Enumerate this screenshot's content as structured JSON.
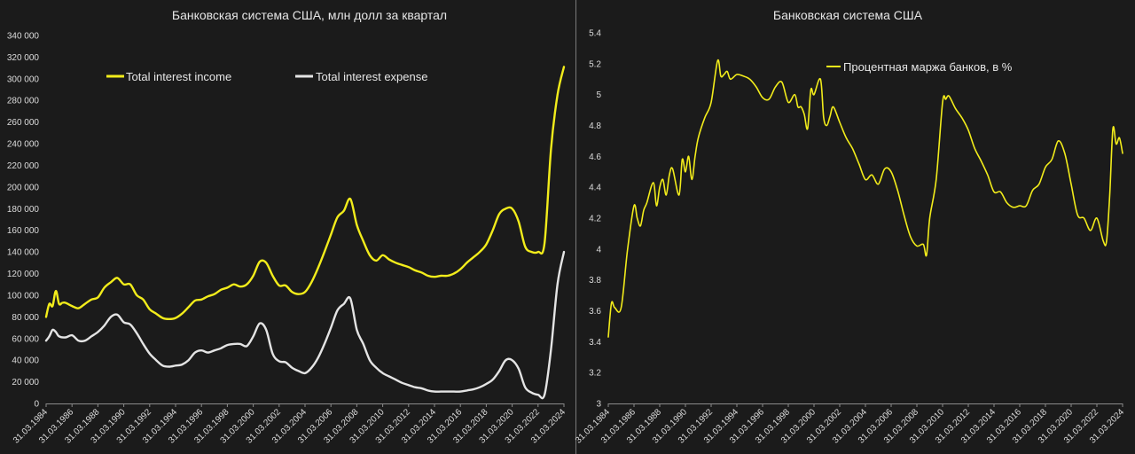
{
  "colors": {
    "background": "#1b1b1b",
    "plot": "#1b1b1b",
    "income": "#f2ec1b",
    "expense": "#e4e4e4",
    "margin": "#f2ec1b",
    "grid": "#3a3a3a",
    "divider": "#888888"
  },
  "chart_data": [
    {
      "type": "line",
      "title": "Банковская система США, млн долл за квартал",
      "xlabel": "",
      "ylabel": "",
      "ylim": [
        0,
        340000
      ],
      "yticks": [
        0,
        20000,
        40000,
        60000,
        80000,
        100000,
        120000,
        140000,
        160000,
        180000,
        200000,
        220000,
        240000,
        260000,
        280000,
        300000,
        320000,
        340000
      ],
      "ytick_labels": [
        "0",
        "20 000",
        "40 000",
        "60 000",
        "80 000",
        "100 000",
        "120 000",
        "140 000",
        "160 000",
        "180 000",
        "200 000",
        "220 000",
        "240 000",
        "260 000",
        "280 000",
        "300 000",
        "320 000",
        "340 000"
      ],
      "xlim": [
        1984,
        2024
      ],
      "xtick_labels": [
        "31.03.1984",
        "31.03.1986",
        "31.03.1988",
        "31.03.1990",
        "31.03.1992",
        "31.03.1994",
        "31.03.1996",
        "31.03.1998",
        "31.03.2000",
        "31.03.2002",
        "31.03.2004",
        "31.03.2006",
        "31.03.2008",
        "31.03.2010",
        "31.03.2012",
        "31.03.2014",
        "31.03.2016",
        "31.03.2018",
        "31.03.2020",
        "31.03.2022",
        "31.03.2024"
      ],
      "grid": false,
      "legend": "top-left",
      "series": [
        {
          "name": "Total interest income",
          "x": [
            1984.0,
            1984.25,
            1984.5,
            1984.75,
            1985.0,
            1985.25,
            1985.5,
            1986.0,
            1986.5,
            1987.0,
            1987.5,
            1988.0,
            1988.5,
            1989.0,
            1989.5,
            1990.0,
            1990.5,
            1991.0,
            1991.5,
            1992.0,
            1992.5,
            1993.0,
            1993.5,
            1994.0,
            1994.5,
            1995.0,
            1995.5,
            1996.0,
            1996.5,
            1997.0,
            1997.5,
            1998.0,
            1998.5,
            1999.0,
            1999.5,
            2000.0,
            2000.5,
            2001.0,
            2001.5,
            2002.0,
            2002.5,
            2003.0,
            2003.5,
            2004.0,
            2004.5,
            2005.0,
            2005.5,
            2006.0,
            2006.5,
            2007.0,
            2007.5,
            2008.0,
            2008.5,
            2009.0,
            2009.5,
            2010.0,
            2010.5,
            2011.0,
            2011.5,
            2012.0,
            2012.5,
            2013.0,
            2013.5,
            2014.0,
            2014.5,
            2015.0,
            2015.5,
            2016.0,
            2016.5,
            2017.0,
            2017.5,
            2018.0,
            2018.5,
            2019.0,
            2019.5,
            2020.0,
            2020.5,
            2021.0,
            2021.5,
            2022.0,
            2022.5,
            2023.0,
            2023.5,
            2024.0
          ],
          "y": [
            80000,
            92000,
            90000,
            104000,
            92000,
            93000,
            93000,
            90000,
            88000,
            92000,
            96000,
            98000,
            107000,
            112000,
            116000,
            110000,
            110000,
            100000,
            96000,
            87000,
            83000,
            79000,
            78000,
            79000,
            83000,
            89000,
            95000,
            96000,
            99000,
            101000,
            105000,
            107000,
            110000,
            108000,
            110000,
            118000,
            131000,
            130000,
            118000,
            109000,
            109000,
            103000,
            101000,
            103000,
            112000,
            125000,
            140000,
            156000,
            172000,
            178000,
            189000,
            165000,
            150000,
            137000,
            132000,
            137000,
            133000,
            130000,
            128000,
            126000,
            123000,
            121000,
            118000,
            117000,
            118000,
            118000,
            120000,
            124000,
            130000,
            135000,
            140000,
            147000,
            160000,
            175000,
            180000,
            180000,
            168000,
            145000,
            140000,
            140000,
            148000,
            235000,
            285000,
            311000
          ]
        },
        {
          "name": "Total interest expense",
          "x": [
            1984.0,
            1984.25,
            1984.5,
            1984.75,
            1985.0,
            1985.5,
            1986.0,
            1986.5,
            1987.0,
            1987.5,
            1988.0,
            1988.5,
            1989.0,
            1989.5,
            1990.0,
            1990.5,
            1991.0,
            1991.5,
            1992.0,
            1992.5,
            1993.0,
            1993.5,
            1994.0,
            1994.5,
            1995.0,
            1995.5,
            1996.0,
            1996.5,
            1997.0,
            1997.5,
            1998.0,
            1998.5,
            1999.0,
            1999.5,
            2000.0,
            2000.5,
            2001.0,
            2001.5,
            2002.0,
            2002.5,
            2003.0,
            2003.5,
            2004.0,
            2004.5,
            2005.0,
            2005.5,
            2006.0,
            2006.5,
            2007.0,
            2007.5,
            2008.0,
            2008.5,
            2009.0,
            2009.5,
            2010.0,
            2010.5,
            2011.0,
            2011.5,
            2012.0,
            2012.5,
            2013.0,
            2013.5,
            2014.0,
            2014.5,
            2015.0,
            2015.5,
            2016.0,
            2016.5,
            2017.0,
            2017.5,
            2018.0,
            2018.5,
            2019.0,
            2019.5,
            2020.0,
            2020.5,
            2021.0,
            2021.5,
            2022.0,
            2022.5,
            2023.0,
            2023.5,
            2024.0
          ],
          "y": [
            58000,
            62000,
            68000,
            66000,
            62000,
            61000,
            63000,
            58000,
            58000,
            62000,
            66000,
            72000,
            80000,
            82000,
            75000,
            73000,
            65000,
            55000,
            46000,
            40000,
            35000,
            34000,
            35000,
            36000,
            40000,
            47000,
            49000,
            47000,
            49000,
            51000,
            54000,
            55000,
            55000,
            53000,
            62000,
            74000,
            68000,
            46000,
            39000,
            38000,
            33000,
            30000,
            28000,
            33000,
            42000,
            55000,
            70000,
            86000,
            92000,
            97000,
            68000,
            55000,
            40000,
            33000,
            28000,
            25000,
            22000,
            19000,
            17000,
            15000,
            14000,
            12000,
            11000,
            11000,
            11000,
            11000,
            11000,
            12000,
            13000,
            15000,
            18000,
            22000,
            30000,
            40000,
            40000,
            32000,
            15000,
            10000,
            8000,
            8000,
            50000,
            110000,
            140000
          ]
        }
      ]
    },
    {
      "type": "line",
      "title": "Банковская система США",
      "xlabel": "",
      "ylabel": "",
      "ylim": [
        3,
        5.4
      ],
      "yticks": [
        3,
        3.2,
        3.4,
        3.6,
        3.8,
        4,
        4.2,
        4.4,
        4.6,
        4.8,
        5,
        5.2,
        5.4
      ],
      "ytick_labels": [
        "3",
        "3.2",
        "3.4",
        "3.6",
        "3.8",
        "4",
        "4.2",
        "4.4",
        "4.6",
        "4.8",
        "5",
        "5.2",
        "5.4"
      ],
      "xlim": [
        1984,
        2024
      ],
      "xtick_labels": [
        "31.03.1984",
        "31.03.1986",
        "31.03.1988",
        "31.03.1990",
        "31.03.1992",
        "31.03.1994",
        "31.03.1996",
        "31.03.1998",
        "31.03.2000",
        "31.03.2002",
        "31.03.2004",
        "31.03.2006",
        "31.03.2008",
        "31.03.2010",
        "31.03.2012",
        "31.03.2014",
        "31.03.2016",
        "31.03.2018",
        "31.03.2020",
        "31.03.2022",
        "31.03.2024"
      ],
      "grid": false,
      "legend": "top-center",
      "series": [
        {
          "name": "Процентная маржа банков, в %",
          "x": [
            1984.0,
            1984.25,
            1984.5,
            1985.0,
            1985.5,
            1986.0,
            1986.25,
            1986.5,
            1986.75,
            1987.0,
            1987.5,
            1987.75,
            1988.0,
            1988.25,
            1988.5,
            1988.75,
            1989.0,
            1989.5,
            1989.75,
            1990.0,
            1990.25,
            1990.5,
            1990.75,
            1991.0,
            1991.5,
            1992.0,
            1992.5,
            1992.75,
            1993.0,
            1993.25,
            1993.5,
            1994.0,
            1994.5,
            1995.0,
            1995.5,
            1996.0,
            1996.5,
            1997.0,
            1997.5,
            1998.0,
            1998.5,
            1998.75,
            1999.0,
            1999.25,
            1999.5,
            1999.75,
            2000.0,
            2000.5,
            2000.75,
            2001.0,
            2001.25,
            2001.5,
            2002.0,
            2002.5,
            2003.0,
            2003.5,
            2004.0,
            2004.5,
            2005.0,
            2005.5,
            2006.0,
            2006.5,
            2007.0,
            2007.5,
            2008.0,
            2008.5,
            2008.75,
            2009.0,
            2009.5,
            2010.0,
            2010.25,
            2010.5,
            2011.0,
            2011.5,
            2012.0,
            2012.5,
            2013.0,
            2013.5,
            2014.0,
            2014.5,
            2015.0,
            2015.5,
            2016.0,
            2016.5,
            2017.0,
            2017.5,
            2018.0,
            2018.5,
            2019.0,
            2019.5,
            2020.0,
            2020.5,
            2021.0,
            2021.5,
            2022.0,
            2022.5,
            2022.75,
            2023.0,
            2023.25,
            2023.5,
            2023.75,
            2024.0
          ],
          "y": [
            3.43,
            3.65,
            3.62,
            3.62,
            4.0,
            4.28,
            4.2,
            4.15,
            4.25,
            4.3,
            4.43,
            4.28,
            4.4,
            4.45,
            4.35,
            4.48,
            4.52,
            4.35,
            4.58,
            4.5,
            4.6,
            4.45,
            4.6,
            4.72,
            4.85,
            4.95,
            5.22,
            5.12,
            5.13,
            5.15,
            5.1,
            5.13,
            5.12,
            5.1,
            5.05,
            4.98,
            4.97,
            5.05,
            5.08,
            4.95,
            5.0,
            4.92,
            4.92,
            4.87,
            4.78,
            5.03,
            5.0,
            5.1,
            4.85,
            4.8,
            4.86,
            4.92,
            4.82,
            4.72,
            4.65,
            4.55,
            4.45,
            4.48,
            4.42,
            4.52,
            4.5,
            4.38,
            4.22,
            4.08,
            4.02,
            4.03,
            3.96,
            4.2,
            4.45,
            4.95,
            4.97,
            4.99,
            4.91,
            4.85,
            4.77,
            4.65,
            4.57,
            4.48,
            4.37,
            4.37,
            4.3,
            4.27,
            4.28,
            4.28,
            4.38,
            4.42,
            4.53,
            4.58,
            4.7,
            4.62,
            4.42,
            4.22,
            4.2,
            4.12,
            4.2,
            4.05,
            4.05,
            4.35,
            4.78,
            4.68,
            4.72,
            4.62
          ]
        }
      ]
    }
  ]
}
